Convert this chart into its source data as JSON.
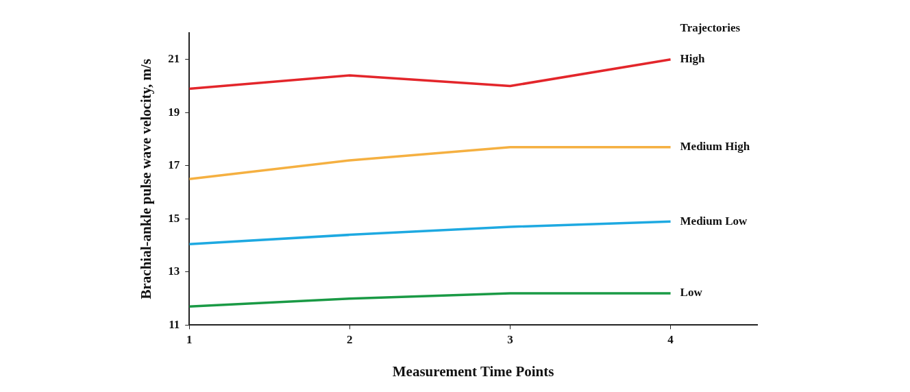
{
  "chart_data": {
    "type": "line",
    "xlabel": "Measurement Time Points",
    "ylabel": "Brachial-ankle pulse wave velocity, m/s",
    "legend_title": "Trajectories",
    "x": [
      1,
      2,
      3,
      4
    ],
    "xlim": [
      1,
      4.54
    ],
    "xticks": [
      1,
      2,
      3,
      4
    ],
    "ylim": [
      11,
      22
    ],
    "yticks": [
      11,
      13,
      15,
      17,
      19,
      21
    ],
    "grid": false,
    "legend": false,
    "marker": "none",
    "line_style": "solid",
    "series": [
      {
        "name": "High",
        "color": "#e3262b",
        "values": [
          19.9,
          20.4,
          20.0,
          21.0
        ]
      },
      {
        "name": "Medium High",
        "color": "#f5b041",
        "values": [
          16.5,
          17.2,
          17.7,
          17.7
        ]
      },
      {
        "name": "Medium Low",
        "color": "#1ea9e1",
        "values": [
          14.05,
          14.4,
          14.7,
          14.9
        ]
      },
      {
        "name": "Low",
        "color": "#1a9a45",
        "values": [
          11.7,
          12.0,
          12.2,
          12.2
        ]
      }
    ]
  }
}
